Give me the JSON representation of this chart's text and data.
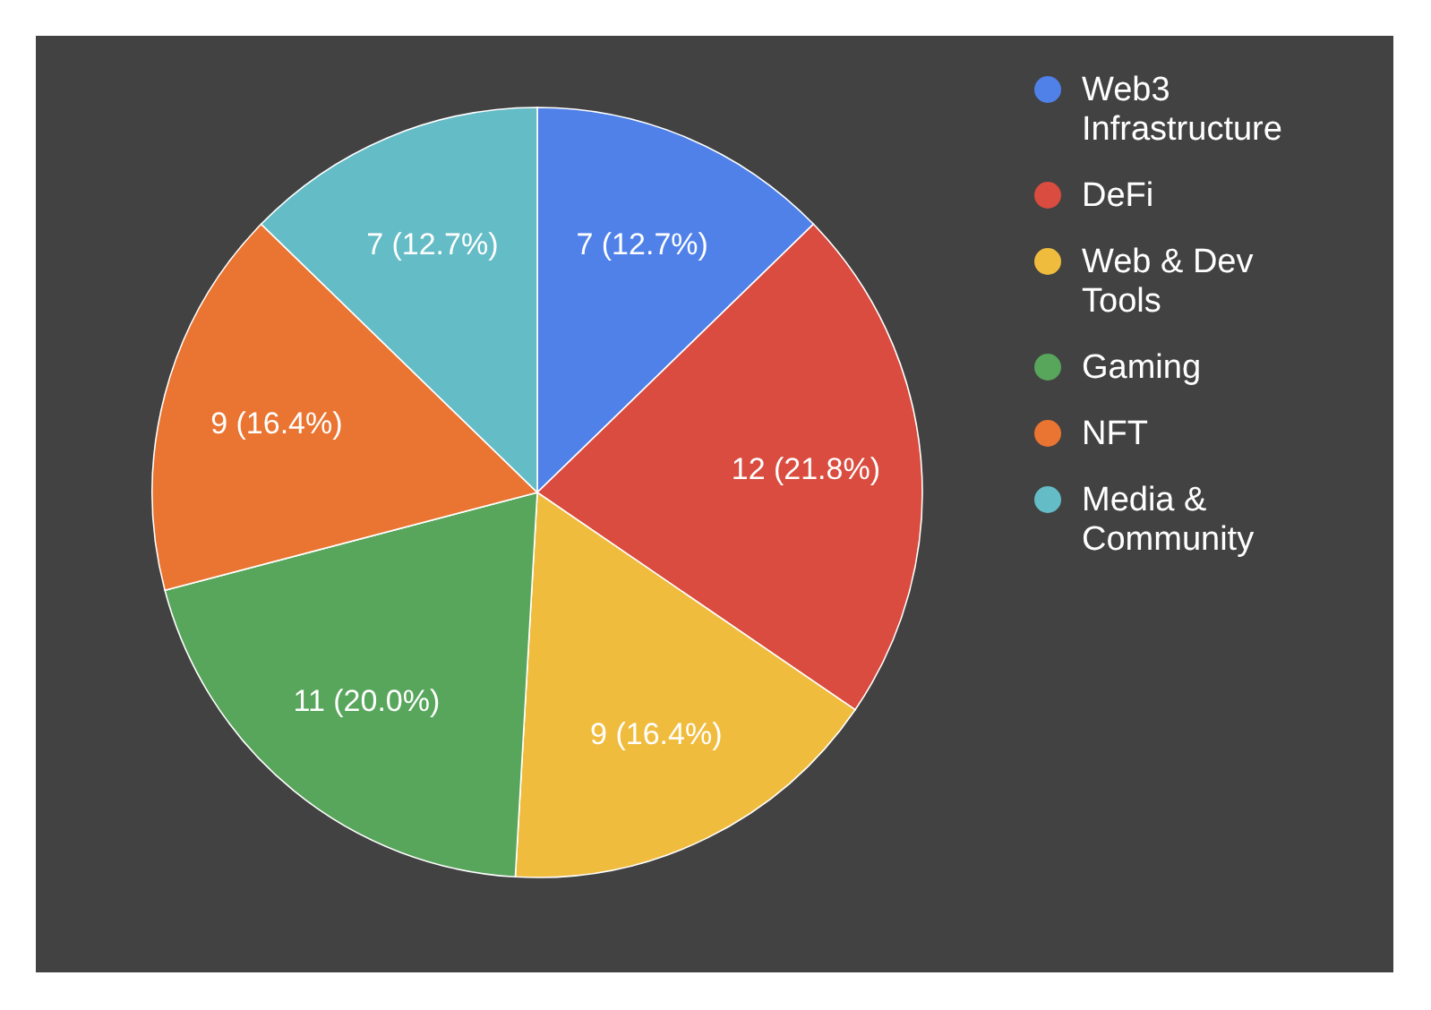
{
  "chart_data": {
    "type": "pie",
    "categories": [
      "Web3 Infrastructure",
      "DeFi",
      "Web & Dev Tools",
      "Gaming",
      "NFT",
      "Media & Community"
    ],
    "values": [
      7,
      12,
      9,
      11,
      9,
      7
    ],
    "colors": [
      "#4f81e9",
      "#d94c3f",
      "#f0bc3e",
      "#58a55c",
      "#ea7431",
      "#64bcc6"
    ],
    "value_labels": [
      "7 (12.7%)",
      "12 (21.8%)",
      "9 (16.4%)",
      "11 (20.0%)",
      "9 (16.4%)",
      "7 (12.7%)"
    ],
    "legend": "right"
  }
}
